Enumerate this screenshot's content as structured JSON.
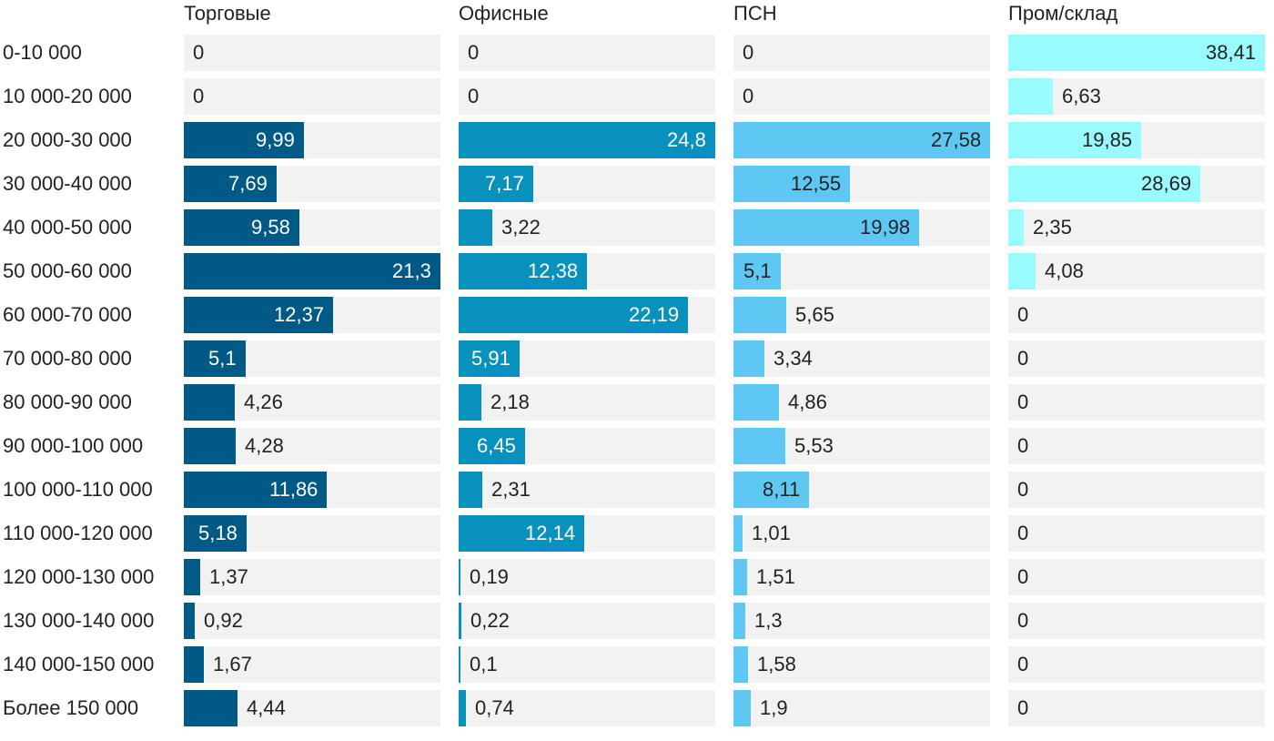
{
  "chart_data": {
    "type": "bar",
    "orientation": "horizontal",
    "layout": "small-multiples",
    "categories": [
      "0-10 000",
      "10 000-20 000",
      "20 000-30 000",
      "30 000-40 000",
      "40 000-50 000",
      "50 000-60 000",
      "60 000-70 000",
      "70 000-80 000",
      "80 000-90 000",
      "90 000-100 000",
      "100 000-110 000",
      "110 000-120 000",
      "120 000-130 000",
      "130 000-140 000",
      "140 000-150 000",
      "Более 150 000"
    ],
    "series": [
      {
        "name": "Торговые",
        "color": "#005a85",
        "max": 21.3,
        "values": [
          0,
          0,
          9.99,
          7.69,
          9.58,
          21.3,
          12.37,
          5.1,
          4.26,
          4.28,
          11.86,
          5.18,
          1.37,
          0.92,
          1.67,
          4.44
        ],
        "labels": [
          "0",
          "0",
          "9,99",
          "7,69",
          "9,58",
          "21,3",
          "12,37",
          "5,1",
          "4,26",
          "4,28",
          "11,86",
          "5,18",
          "1,37",
          "0,92",
          "1,67",
          "4,44"
        ]
      },
      {
        "name": "Офисные",
        "color": "#0891bd",
        "max": 24.8,
        "values": [
          0,
          0,
          24.8,
          7.17,
          3.22,
          12.38,
          22.19,
          5.91,
          2.18,
          6.45,
          2.31,
          12.14,
          0.19,
          0.22,
          0.1,
          0.74
        ],
        "labels": [
          "0",
          "0",
          "24,8",
          "7,17",
          "3,22",
          "12,38",
          "22,19",
          "5,91",
          "2,18",
          "6,45",
          "2,31",
          "12,14",
          "0,19",
          "0,22",
          "0,1",
          "0,74"
        ]
      },
      {
        "name": "ПСН",
        "color": "#5ec8f2",
        "max": 27.58,
        "values": [
          0,
          0,
          27.58,
          12.55,
          19.98,
          5.1,
          5.65,
          3.34,
          4.86,
          5.53,
          8.11,
          1.01,
          1.51,
          1.3,
          1.58,
          1.9
        ],
        "labels": [
          "0",
          "0",
          "27,58",
          "12,55",
          "19,98",
          "5,1",
          "5,65",
          "3,34",
          "4,86",
          "5,53",
          "8,11",
          "1,01",
          "1,51",
          "1,3",
          "1,58",
          "1,9"
        ]
      },
      {
        "name": "Пром/склад",
        "color": "#9afbfe",
        "max": 38.41,
        "values": [
          38.41,
          6.63,
          19.85,
          28.69,
          2.35,
          4.08,
          0,
          0,
          0,
          0,
          0,
          0,
          0,
          0,
          0,
          0
        ],
        "labels": [
          "38,41",
          "6,63",
          "19,85",
          "28,69",
          "2,35",
          "4,08",
          "0",
          "0",
          "0",
          "0",
          "0",
          "0",
          "0",
          "0",
          "0",
          "0"
        ]
      }
    ],
    "inside_label_color": [
      "#ffffff",
      "#ffffff",
      "#222222",
      "#222222"
    ],
    "outside_label_color": "#222222",
    "track_color": "#f2f2f2",
    "grid": false,
    "legend": "none (column headers)"
  }
}
